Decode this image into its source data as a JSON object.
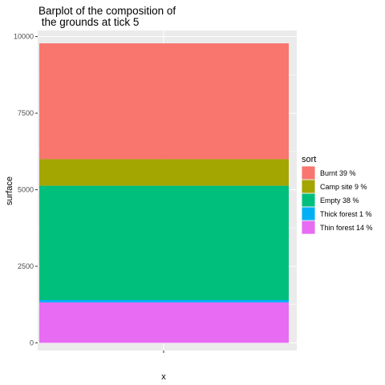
{
  "chart_data": {
    "type": "bar",
    "stacked": true,
    "title_lines": [
      "Barplot of the composition of",
      " the grounds at tick 5"
    ],
    "xlabel": "x",
    "ylabel": "surface",
    "categories": [
      ""
    ],
    "ylim": [
      -250,
      10200
    ],
    "yticks": [
      0,
      2500,
      5000,
      7500,
      10000
    ],
    "grid": true,
    "legend": {
      "title": "sort",
      "position": "right",
      "items": [
        {
          "label": "Burnt 39 %",
          "color": "#F8766D"
        },
        {
          "label": "Camp site 9 %",
          "color": "#A3A500"
        },
        {
          "label": "Empty 38 %",
          "color": "#00BF7D"
        },
        {
          "label": "Thick forest 1 %",
          "color": "#00B0F6"
        },
        {
          "label": "Thin forest 14 %",
          "color": "#E76BF3"
        }
      ]
    },
    "series": [
      {
        "name": "Burnt 39 %",
        "values": [
          3780
        ],
        "color": "#F8766D"
      },
      {
        "name": "Camp site 9 %",
        "values": [
          870
        ],
        "color": "#A3A500"
      },
      {
        "name": "Empty 38 %",
        "values": [
          3730
        ],
        "color": "#00BF7D"
      },
      {
        "name": "Thick forest 1 %",
        "values": [
          80
        ],
        "color": "#00B0F6"
      },
      {
        "name": "Thin forest 14 %",
        "values": [
          1320
        ],
        "color": "#E76BF3"
      }
    ]
  }
}
